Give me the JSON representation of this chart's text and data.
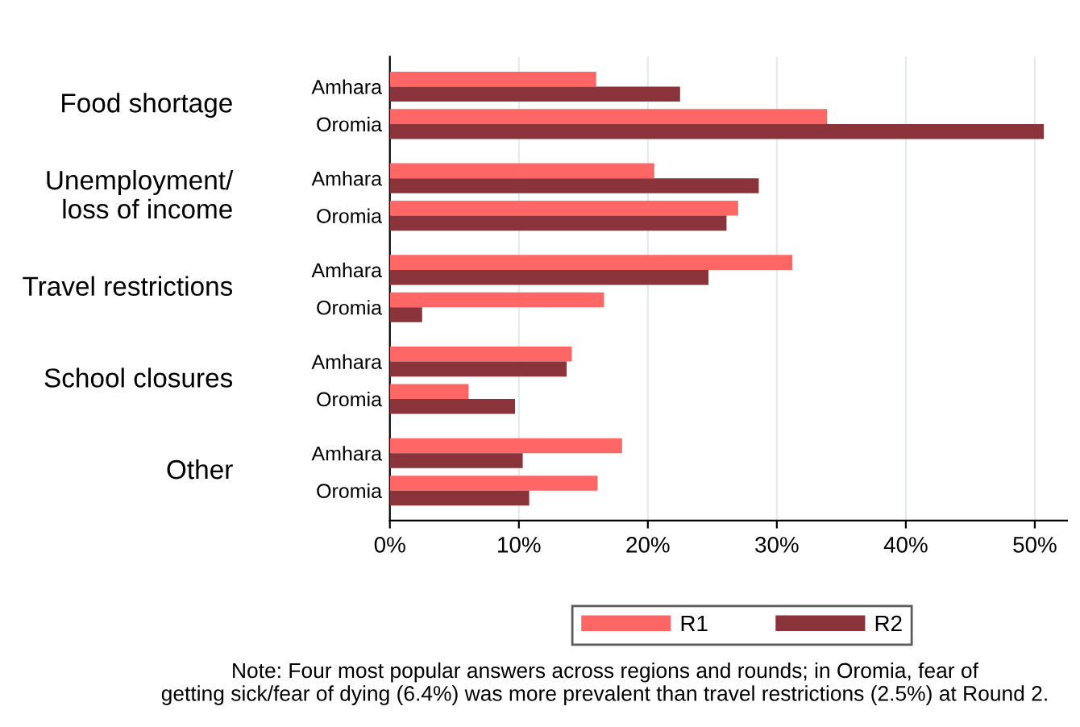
{
  "chart_data": {
    "type": "bar",
    "orientation": "horizontal",
    "categories": [
      "Amhara",
      "Oromia",
      "Amhara",
      "Oromia",
      "Amhara",
      "Oromia",
      "Amhara",
      "Oromia",
      "Amhara",
      "Oromia"
    ],
    "series": [
      {
        "name": "R1",
        "color": "#ff6666",
        "values": [
          16.0,
          33.9,
          20.5,
          27.0,
          31.2,
          16.6,
          14.1,
          6.1,
          18.0,
          16.1
        ]
      },
      {
        "name": "R2",
        "color": "#8b333b",
        "values": [
          22.5,
          50.7,
          28.6,
          26.1,
          24.7,
          2.5,
          13.7,
          9.7,
          10.3,
          10.8
        ]
      }
    ],
    "annotations": [
      "Food shortage",
      "Unemployment/\nloss of income",
      "Travel restrictions",
      "School closures",
      "Other",
      "Note: Four most popular answers across regions and rounds; in Oromia, fear of\ngetting sick/fear of dying (6.4%) was more prevalent than travel restrictions (2.5%) at Round 2."
    ],
    "xlim": [
      0,
      52.5
    ],
    "xticks": [
      {
        "value": 0,
        "label": "0%"
      },
      {
        "value": 10,
        "label": "10%"
      },
      {
        "value": 20,
        "label": "20%"
      },
      {
        "value": 30,
        "label": "30%"
      },
      {
        "value": 40,
        "label": "40%"
      },
      {
        "value": 50,
        "label": "50%"
      }
    ],
    "grid": "x",
    "legend": "bottom"
  }
}
